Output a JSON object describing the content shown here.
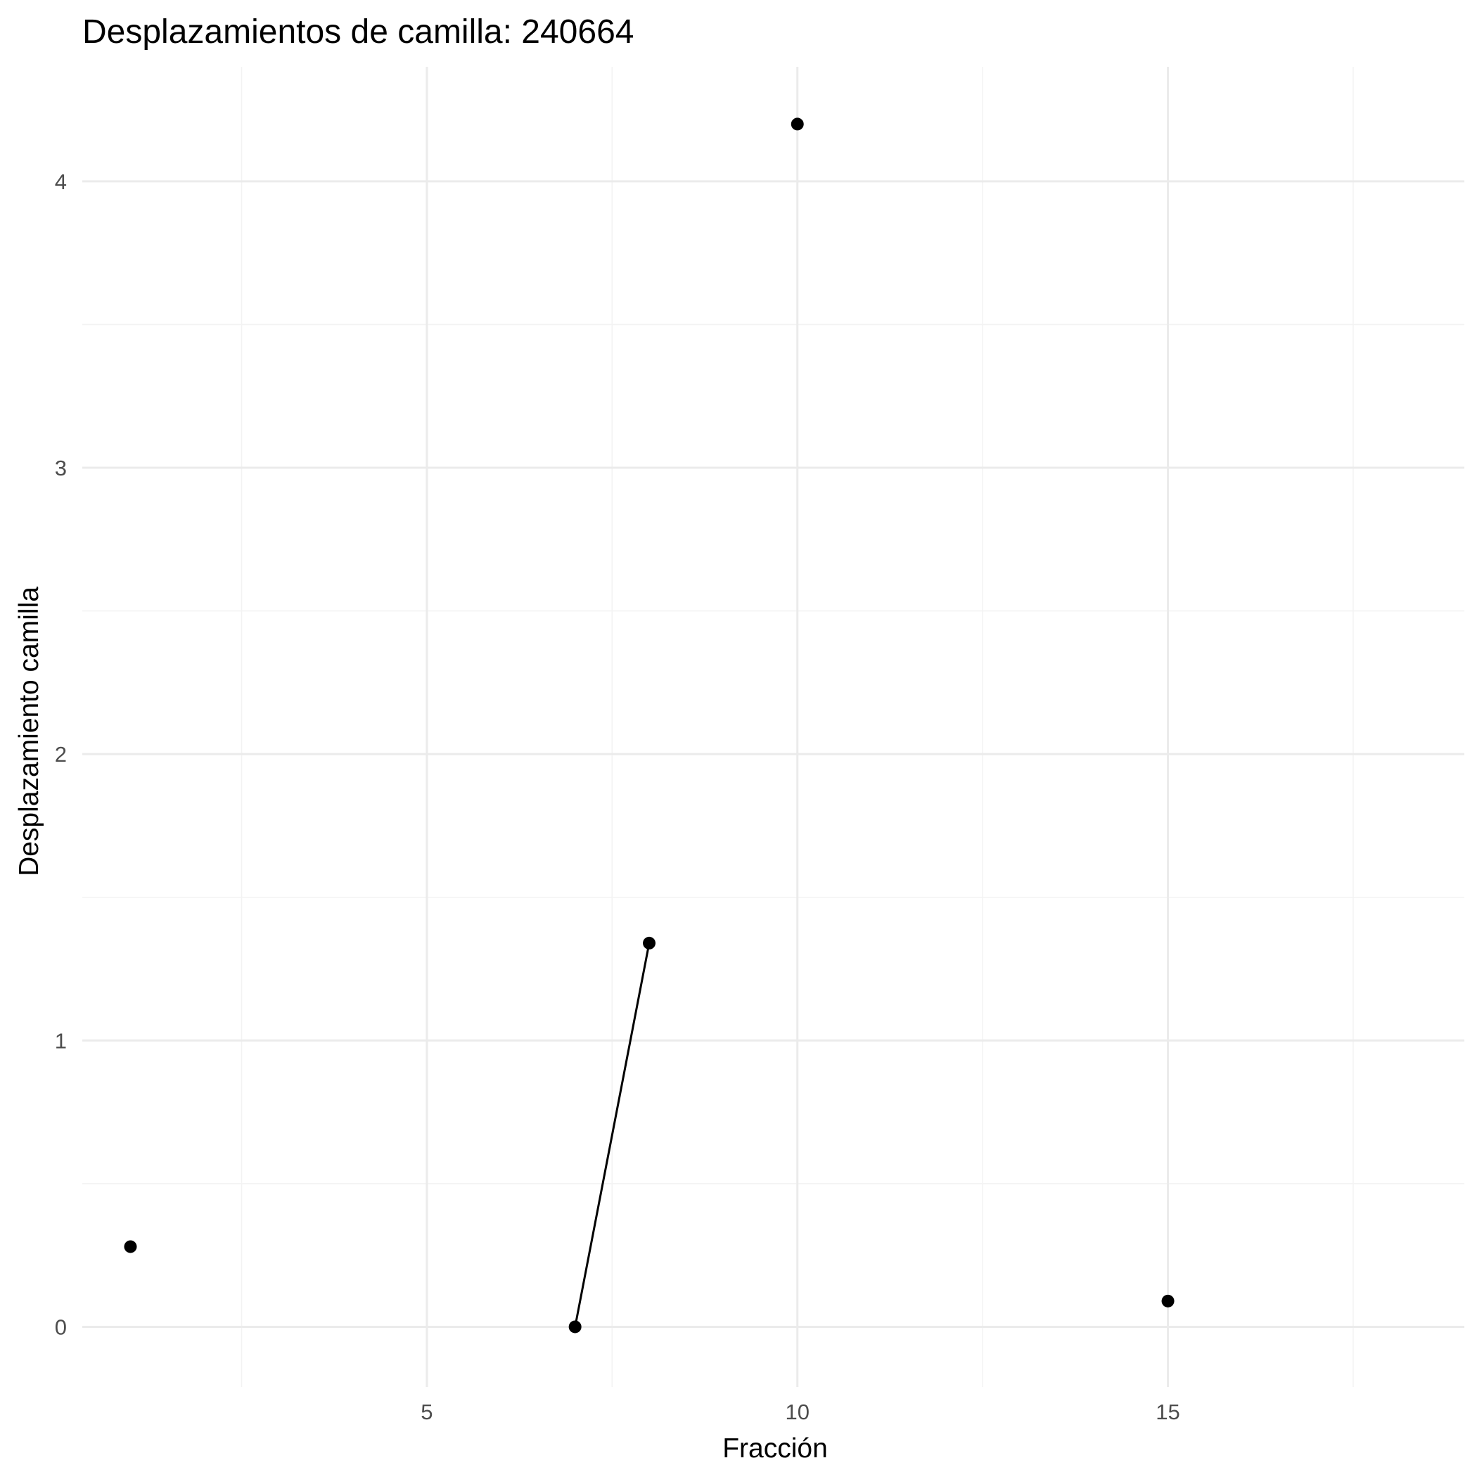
{
  "chart_data": {
    "type": "line",
    "title": "Desplazamientos de camilla: 240664",
    "xlabel": "Fracción",
    "ylabel": "Desplazamiento camilla",
    "xlim": [
      0.35,
      19.0
    ],
    "ylim": [
      -0.21,
      4.4
    ],
    "x_ticks": [
      5,
      10,
      15
    ],
    "x_minor": [
      2.5,
      7.5,
      12.5,
      17.5
    ],
    "y_ticks": [
      0,
      1,
      2,
      3,
      4
    ],
    "y_minor": [
      0.5,
      1.5,
      2.5,
      3.5
    ],
    "grid": true,
    "legend": "none",
    "series": [
      {
        "points": [
          {
            "x": 1,
            "y": 0.28
          },
          {
            "x": 7,
            "y": 0.0
          },
          {
            "x": 8,
            "y": 1.34
          },
          {
            "x": 10,
            "y": 4.2
          },
          {
            "x": 15,
            "y": 0.09
          }
        ],
        "segments": [
          [
            7,
            8
          ]
        ]
      }
    ]
  }
}
